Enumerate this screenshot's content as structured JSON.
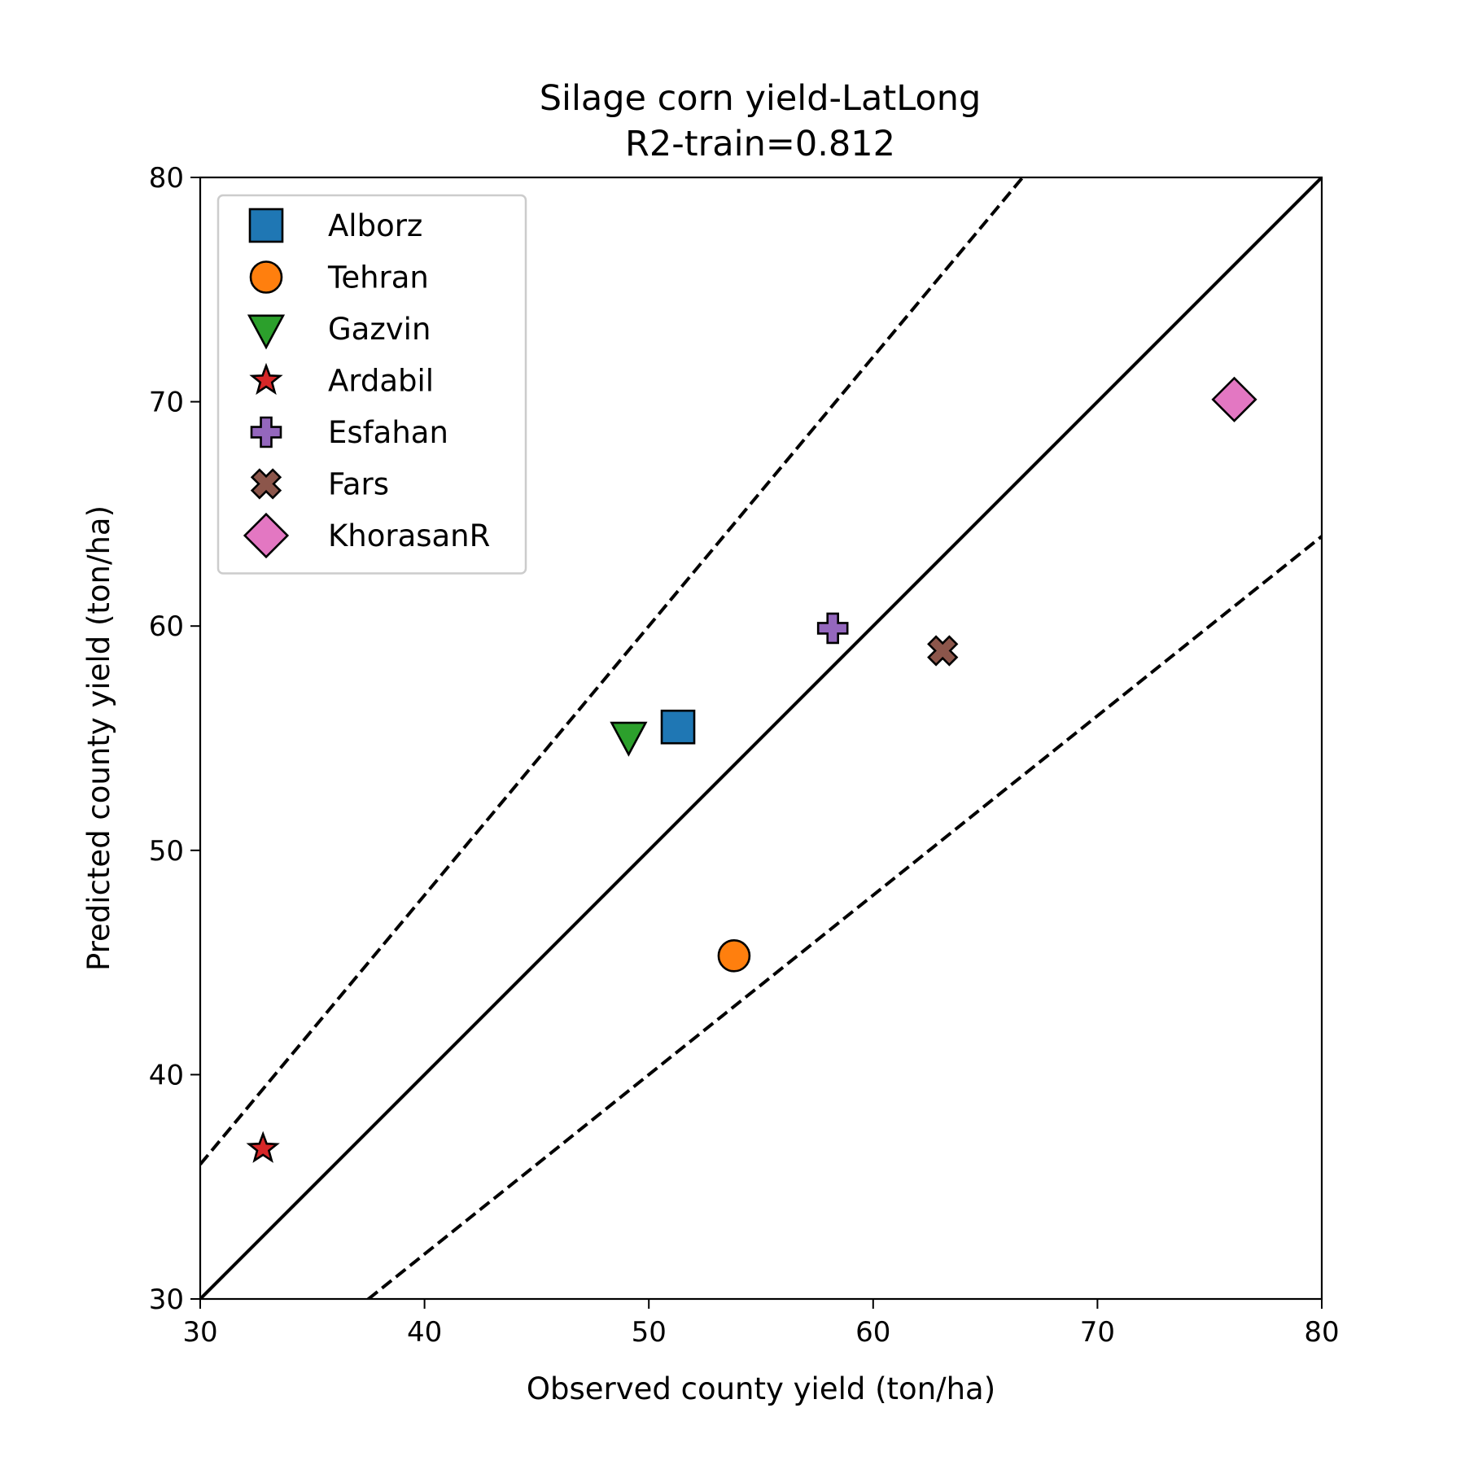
{
  "chart_data": {
    "type": "scatter",
    "title": [
      "Silage corn yield-LatLong",
      "R2-train=0.812"
    ],
    "xlabel": "Observed county yield (ton/ha)",
    "ylabel": "Predicted county yield (ton/ha)",
    "xlim": [
      30,
      80
    ],
    "ylim": [
      30,
      80
    ],
    "xticks": [
      "30",
      "40",
      "50",
      "60",
      "70",
      "80"
    ],
    "yticks": [
      "30",
      "40",
      "50",
      "60",
      "70",
      "80"
    ],
    "grid": false,
    "legend_position": "upper-left",
    "reference_lines": [
      {
        "style": "solid",
        "slope": 1.0,
        "intercept": 0
      },
      {
        "style": "dashed",
        "slope": 1.2,
        "intercept": 0
      },
      {
        "style": "dashed",
        "slope": 0.8,
        "intercept": 0
      }
    ],
    "series": [
      {
        "name": "Alborz",
        "marker": "square",
        "color": "#1f77b4",
        "x": 51.3,
        "y": 55.5
      },
      {
        "name": "Tehran",
        "marker": "circle",
        "color": "#ff7f0e",
        "x": 53.8,
        "y": 45.3
      },
      {
        "name": "Gazvin",
        "marker": "triangle-down",
        "color": "#2ca02c",
        "x": 49.1,
        "y": 55.1
      },
      {
        "name": "Ardabil",
        "marker": "star",
        "color": "#d62728",
        "x": 32.8,
        "y": 36.7
      },
      {
        "name": "Esfahan",
        "marker": "plus",
        "color": "#9467bd",
        "x": 58.2,
        "y": 59.9
      },
      {
        "name": "Fars",
        "marker": "x",
        "color": "#8c564b",
        "x": 63.1,
        "y": 58.9
      },
      {
        "name": "KhorasanR",
        "marker": "diamond",
        "color": "#e377c2",
        "x": 76.1,
        "y": 70.1
      }
    ]
  }
}
